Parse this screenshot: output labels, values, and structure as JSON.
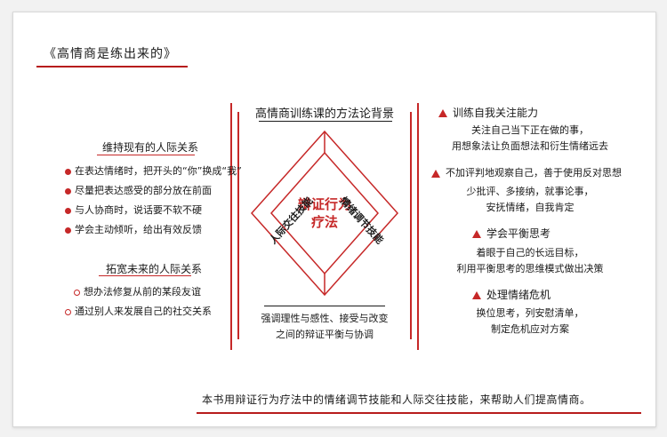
{
  "title": "《高情商是练出来的》",
  "center": {
    "heading": "高情商训练课的方法论背景",
    "diamond_line1": "辩证行为",
    "diamond_line2": "疗法",
    "left_label": "人际交往技能",
    "right_label": "情绪调节技能",
    "bottom_line1": "强调理性与感性、接受与改变",
    "bottom_line2": "之间的辩证平衡与协调"
  },
  "left": {
    "section1": {
      "heading": "维持现有的人际关系",
      "items": [
        "在表达情绪时，把开头的“你”换成“我”",
        "尽量把表达感受的部分放在前面",
        "与人协商时，说话要不软不硬",
        "学会主动倾听，给出有效反馈"
      ]
    },
    "section2": {
      "heading": "拓宽未来的人际关系",
      "items": [
        "想办法修复从前的某段友谊",
        "通过别人来发展自己的社交关系"
      ]
    }
  },
  "right": {
    "sections": [
      {
        "heading": "训练自我关注能力",
        "lines": [
          "关注自己当下正在做的事，",
          "用想象法让负面想法和衍生情绪远去"
        ]
      },
      {
        "heading": "不加评判地观察自己，善于使用反对思想",
        "lines": [
          "少批评、多接纳，就事论事，",
          "安抚情绪，自我肯定"
        ]
      },
      {
        "heading": "学会平衡思考",
        "lines": [
          "着眼于自己的长远目标，",
          "利用平衡思考的思维模式做出决策"
        ]
      },
      {
        "heading": "处理情绪危机",
        "lines": [
          "换位思考，列安慰清单，",
          "制定危机应对方案"
        ]
      }
    ]
  },
  "footer": "本书用辩证行为疗法中的情绪调节技能和人际交往技能，来帮助人们提高情商。",
  "colors": {
    "accent": "#c62828"
  }
}
